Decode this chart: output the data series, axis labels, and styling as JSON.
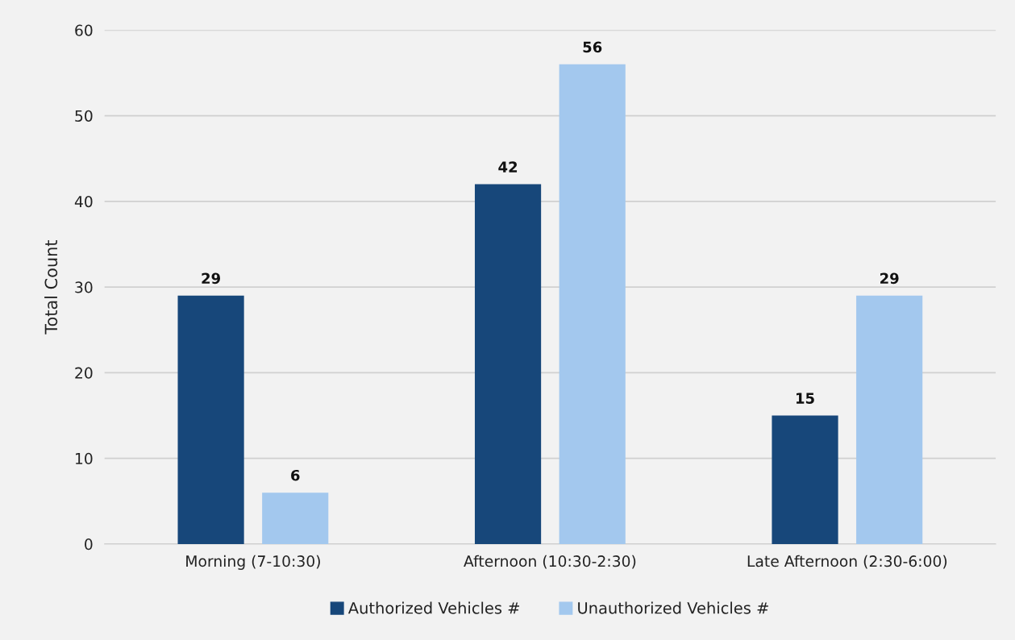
{
  "chart_data": {
    "type": "bar",
    "ylabel": "Total Count",
    "categories": [
      "Morning (7-10:30)",
      "Afternoon (10:30-2:30)",
      "Late Afternoon (2:30-6:00)"
    ],
    "series": [
      {
        "name": "Authorized Vehicles #",
        "color": "#17477a",
        "values": [
          29,
          42,
          15
        ]
      },
      {
        "name": "Unauthorized Vehicles #",
        "color": "#a3c8ee",
        "values": [
          6,
          56,
          29
        ]
      }
    ],
    "ylim": [
      0,
      60
    ],
    "yticks": [
      0,
      10,
      20,
      30,
      40,
      50,
      60
    ],
    "grid": "y",
    "legend": "bottom",
    "data_labels": true
  }
}
